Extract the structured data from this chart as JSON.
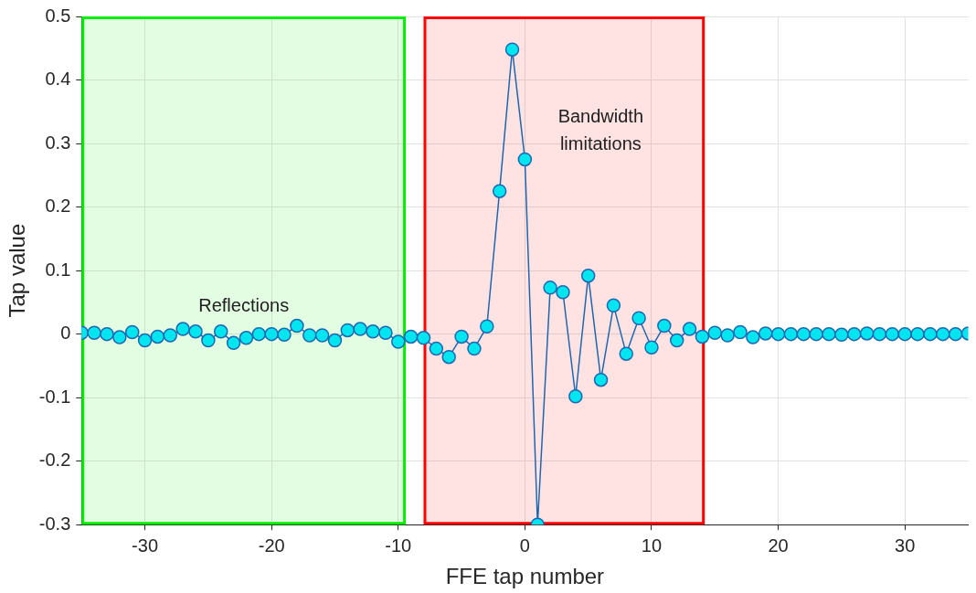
{
  "chart_data": {
    "type": "line",
    "xlabel": "FFE tap number",
    "ylabel": "Tap value",
    "x": [
      -35,
      -34,
      -33,
      -32,
      -31,
      -30,
      -29,
      -28,
      -27,
      -26,
      -25,
      -24,
      -23,
      -22,
      -21,
      -20,
      -19,
      -18,
      -17,
      -16,
      -15,
      -14,
      -13,
      -12,
      -11,
      -10,
      -9,
      -8,
      -7,
      -6,
      -5,
      -4,
      -3,
      -2,
      -1,
      0,
      1,
      2,
      3,
      4,
      5,
      6,
      7,
      8,
      9,
      10,
      11,
      12,
      13,
      14,
      15,
      16,
      17,
      18,
      19,
      20,
      21,
      22,
      23,
      24,
      25,
      26,
      27,
      28,
      29,
      30,
      31,
      32,
      33,
      34,
      35
    ],
    "series": [
      {
        "color": "#1f66b0",
        "values": [
          0.002,
          0.002,
          0,
          -0.005,
          0.003,
          -0.01,
          -0.004,
          -0.002,
          0.008,
          0.004,
          -0.01,
          0.004,
          -0.014,
          -0.006,
          0,
          0,
          -0.001,
          0.013,
          -0.002,
          -0.002,
          -0.01,
          0.006,
          0.008,
          0.004,
          0.002,
          -0.012,
          -0.004,
          -0.006,
          -0.023,
          -0.036,
          -0.004,
          -0.023,
          0.012,
          0.225,
          0.448,
          0.275,
          -0.3,
          0.073,
          0.066,
          -0.098,
          0.092,
          -0.072,
          0.045,
          -0.031,
          0.025,
          -0.021,
          0.013,
          -0.01,
          0.008,
          -0.004,
          0.002,
          -0.002,
          0.003,
          -0.005,
          0.001,
          0,
          0,
          0,
          0,
          0,
          -0.001,
          0,
          0.001,
          0,
          0,
          0,
          0,
          0,
          0,
          0,
          0.001
        ]
      }
    ],
    "xlim": [
      -35,
      35
    ],
    "xticks": [
      -30,
      -20,
      -10,
      0,
      10,
      20,
      30
    ],
    "ylim": [
      -0.3,
      0.5
    ],
    "yticks": [
      -0.3,
      -0.2,
      -0.1,
      0,
      0.1,
      0.2,
      0.3,
      0.4,
      0.5
    ],
    "grid": true,
    "marker": "circle",
    "line_style": "solid",
    "legend": false,
    "bands": [
      {
        "axis": "x",
        "from": -35,
        "to": -9.4,
        "label": "Reflections",
        "color": "#00ee00"
      },
      {
        "axis": "x",
        "from": -8,
        "to": 14.2,
        "label": "Bandwidth limitations",
        "color": "#ff0000"
      }
    ]
  }
}
